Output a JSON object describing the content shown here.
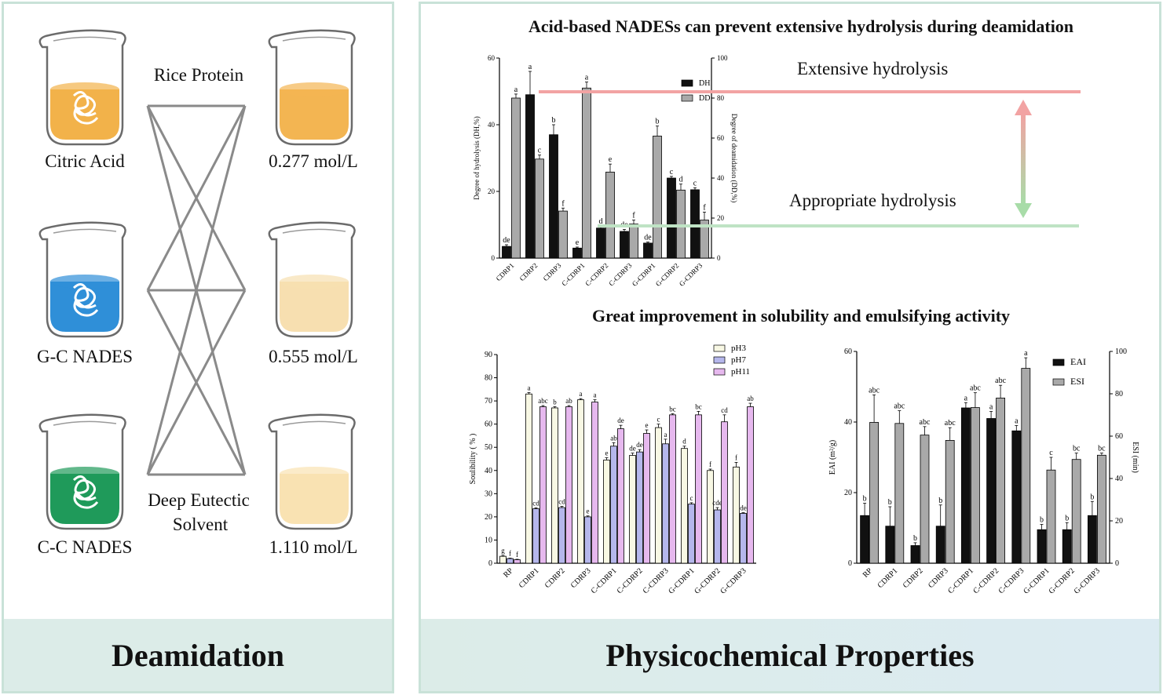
{
  "left": {
    "banner": "Deamidation",
    "solvents": [
      "Citric Acid",
      "G-C NADES",
      "C-C NADES"
    ],
    "concentrations": [
      "0.277 mol/L",
      "0.555 mol/L",
      "1.110 mol/L"
    ],
    "top_label": "Rice Protein",
    "bottom_label_1": "Deep Eutectic",
    "bottom_label_2": "Solvent",
    "liquid_colors": [
      "#f2b24a",
      "#2f8fd8",
      "#1f9a5a"
    ],
    "conc_colors": [
      "#f3b552",
      "#f7dfb0",
      "#f9e2b2"
    ]
  },
  "right": {
    "banner": "Physicochemical Properties",
    "title1": "Acid-based NADESs can prevent extensive hydrolysis during deamidation",
    "title2": "Great improvement in solubility and emulsifying activity",
    "annot_extensive": "Extensive hydrolysis",
    "annot_appropriate": "Appropriate hydrolysis"
  },
  "chart_data": [
    {
      "type": "bar",
      "categories": [
        "CDRP1",
        "CDRP2",
        "CDRP3",
        "C-CDRP1",
        "C-CDRP2",
        "C-CDRP3",
        "G-CDRP1",
        "G-CDRP2",
        "G-CDRP3"
      ],
      "series": [
        {
          "name": "DH",
          "axis": "left",
          "values": [
            3.5,
            49,
            37,
            3,
            9,
            8,
            4.5,
            24,
            20.5
          ],
          "errors": [
            0.5,
            7,
            3,
            0.3,
            0.6,
            0.6,
            0.3,
            0.5,
            0.6
          ],
          "letters": [
            "de",
            "a",
            "b",
            "e",
            "d",
            "de",
            "de",
            "c",
            "c"
          ],
          "color": "#111111"
        },
        {
          "name": "DD",
          "axis": "right",
          "values": [
            80,
            49.5,
            23.5,
            85,
            43,
            17,
            61,
            34,
            19
          ],
          "errors": [
            2,
            2,
            1.5,
            3,
            4,
            2,
            5,
            3,
            4
          ],
          "letters": [
            "a",
            "c",
            "f",
            "a",
            "e",
            "f",
            "b",
            "d",
            "f"
          ],
          "color": "#a9a9a9"
        }
      ],
      "ylabel_left": "Degree of hydrolysis (DH,%)",
      "ylabel_right": "Degree of deamidation (DD,%)",
      "ylim_left": [
        0,
        60
      ],
      "ylim_right": [
        0,
        100
      ],
      "yticks_left": [
        "0",
        "20",
        "40",
        "60"
      ],
      "yticks_right": [
        "0",
        "20",
        "40",
        "60",
        "80",
        "100"
      ],
      "legend": "top-right"
    },
    {
      "type": "bar",
      "categories": [
        "RP",
        "CDRP1",
        "CDRP2",
        "CDRP3",
        "C-CDRP1",
        "C-CDRP2",
        "C-CDRP3",
        "G-CDRP1",
        "G-CDRP2",
        "G-CDRP3"
      ],
      "series": [
        {
          "name": "pH3",
          "values": [
            3,
            73,
            67,
            70.5,
            44.5,
            46.5,
            58.5,
            49.5,
            40,
            41.5
          ],
          "errors": [
            0.3,
            0.6,
            0.5,
            0.5,
            1,
            1,
            1.5,
            1,
            0.6,
            2
          ],
          "letters": [
            "g",
            "a",
            "b",
            "a",
            "e",
            "de",
            "c",
            "d",
            "f",
            "f"
          ],
          "color": "#f8f8e4"
        },
        {
          "name": "pH7",
          "values": [
            2,
            23.5,
            24,
            20,
            50.5,
            48,
            51.5,
            25.5,
            23,
            21.5
          ],
          "errors": [
            0.2,
            0.4,
            0.5,
            0.4,
            1.5,
            1,
            2,
            0.6,
            1,
            0.3
          ],
          "letters": [
            "f",
            "cd",
            "cd",
            "e",
            "ab",
            "de",
            "a",
            "c",
            "cde",
            "de"
          ],
          "color": "#b5b7ec"
        },
        {
          "name": "pH11",
          "values": [
            1.5,
            67.5,
            67.5,
            69.5,
            58,
            56,
            64,
            64,
            61,
            67.5
          ],
          "errors": [
            0.2,
            0.5,
            0.5,
            1,
            1.5,
            1.5,
            0.5,
            1.5,
            3,
            1.5
          ],
          "letters": [
            "f",
            "abc",
            "ab",
            "a",
            "de",
            "e",
            "bc",
            "bc",
            "cd",
            "ab"
          ],
          "color": "#e6b8ee"
        }
      ],
      "ylabel": "Soulibility ( % )",
      "ylim": [
        0,
        90
      ],
      "yticks": [
        "0",
        "10",
        "20",
        "30",
        "40",
        "50",
        "60",
        "70",
        "80",
        "90"
      ],
      "legend": "top-right"
    },
    {
      "type": "bar",
      "categories": [
        "RP",
        "CDRP1",
        "CDRP2",
        "CDRP3",
        "C-CDRP1",
        "C-CDRP2",
        "C-CDRP3",
        "G-CDRP1",
        "G-CDRP2",
        "G-CDRP3"
      ],
      "series": [
        {
          "name": "EAI",
          "axis": "left",
          "values": [
            13.5,
            10.5,
            5,
            10.5,
            44,
            41,
            37.5,
            9.5,
            9.5,
            13.5
          ],
          "errors": [
            3.5,
            5.5,
            0.8,
            6,
            1.5,
            2,
            1.5,
            1.5,
            2,
            4
          ],
          "letters": [
            "b",
            "b",
            "b",
            "b",
            "a",
            "a",
            "a",
            "b",
            "b",
            "b"
          ],
          "color": "#111111"
        },
        {
          "name": "ESI",
          "axis": "right",
          "values": [
            66.5,
            66,
            60.5,
            58,
            73.5,
            78,
            92,
            44,
            49,
            51
          ],
          "errors": [
            13,
            6,
            4,
            6,
            7,
            6,
            5,
            6,
            3,
            1
          ],
          "letters": [
            "abc",
            "abc",
            "abc",
            "abc",
            "abc",
            "abc",
            "a",
            "c",
            "bc",
            "bc"
          ],
          "color": "#a9a9a9"
        }
      ],
      "ylabel_left": "EAI (m²/g)",
      "ylabel_right": "ESI (min)",
      "ylim_left": [
        0,
        60
      ],
      "ylim_right": [
        0,
        100
      ],
      "yticks_left": [
        "0",
        "20",
        "40",
        "60"
      ],
      "yticks_right": [
        "0",
        "20",
        "40",
        "60",
        "80",
        "100"
      ],
      "legend": "top-right"
    }
  ]
}
